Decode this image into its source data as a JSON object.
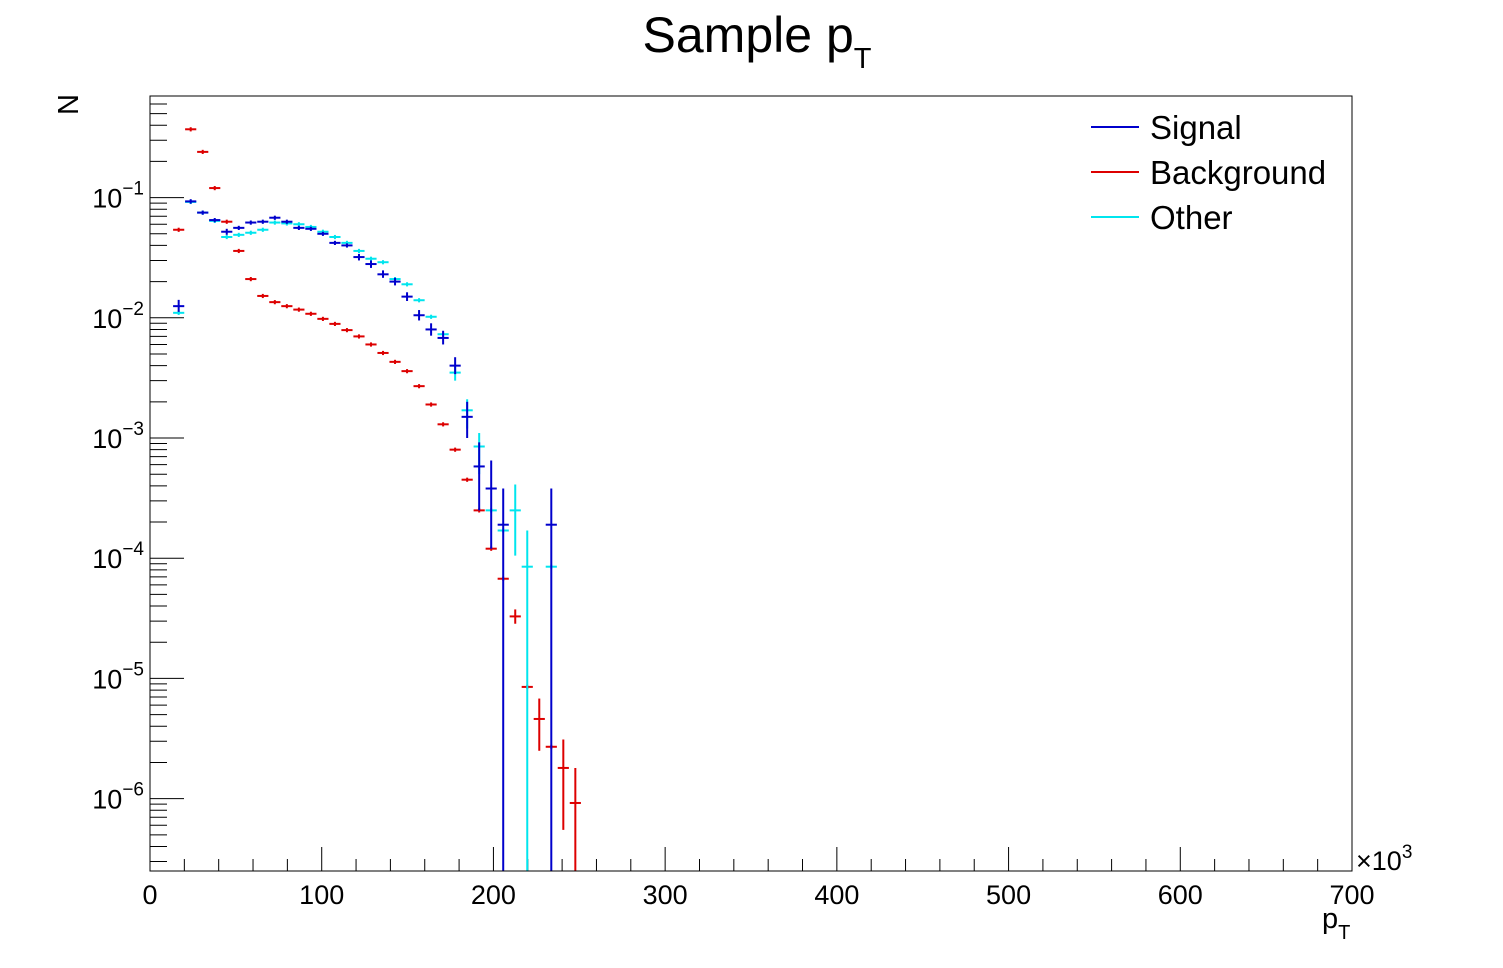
{
  "chart_data": {
    "type": "scatter",
    "title": "Sample p",
    "title_subscript": "T",
    "xlabel": "p",
    "xlabel_subscript": "T",
    "ylabel": "N",
    "x_multiplier": "×10",
    "x_multiplier_exp": "3",
    "xlim": [
      0,
      700
    ],
    "ylim": [
      2.5e-07,
      0.7
    ],
    "y_scale": "log",
    "bin_width": 6.5,
    "grid": false,
    "legend_position": "top-right",
    "x_ticks": [
      {
        "value": 0,
        "label": "0"
      },
      {
        "value": 100,
        "label": "100"
      },
      {
        "value": 200,
        "label": "200"
      },
      {
        "value": 300,
        "label": "300"
      },
      {
        "value": 400,
        "label": "400"
      },
      {
        "value": 500,
        "label": "500"
      },
      {
        "value": 600,
        "label": "600"
      },
      {
        "value": 700,
        "label": "700"
      }
    ],
    "y_ticks": [
      {
        "value": 0.1,
        "base": "10",
        "exp": "−1"
      },
      {
        "value": 0.01,
        "base": "10",
        "exp": "−2"
      },
      {
        "value": 0.001,
        "base": "10",
        "exp": "−3"
      },
      {
        "value": 0.0001,
        "base": "10",
        "exp": "−4"
      },
      {
        "value": 1e-05,
        "base": "10",
        "exp": "−5"
      },
      {
        "value": 1e-06,
        "base": "10",
        "exp": "−6"
      }
    ],
    "series": [
      {
        "name": "Signal",
        "color": "#0000cc",
        "points": [
          {
            "x": 16.7,
            "y": 0.0125,
            "lo": 0.0112,
            "hi": 0.0141
          },
          {
            "x": 23.7,
            "y": 0.093,
            "lo": 0.089,
            "hi": 0.097
          },
          {
            "x": 30.7,
            "y": 0.075
          },
          {
            "x": 37.7,
            "y": 0.065
          },
          {
            "x": 44.7,
            "y": 0.052,
            "lo": 0.049,
            "hi": 0.055
          },
          {
            "x": 51.7,
            "y": 0.056
          },
          {
            "x": 58.7,
            "y": 0.062
          },
          {
            "x": 65.7,
            "y": 0.063
          },
          {
            "x": 72.7,
            "y": 0.068
          },
          {
            "x": 79.7,
            "y": 0.063
          },
          {
            "x": 86.7,
            "y": 0.056
          },
          {
            "x": 93.7,
            "y": 0.055
          },
          {
            "x": 100.7,
            "y": 0.05
          },
          {
            "x": 107.7,
            "y": 0.042
          },
          {
            "x": 114.7,
            "y": 0.04
          },
          {
            "x": 121.7,
            "y": 0.032,
            "lo": 0.03,
            "hi": 0.034
          },
          {
            "x": 128.7,
            "y": 0.028,
            "lo": 0.026,
            "hi": 0.03
          },
          {
            "x": 135.7,
            "y": 0.023,
            "lo": 0.0215,
            "hi": 0.0248
          },
          {
            "x": 142.7,
            "y": 0.02,
            "lo": 0.0186,
            "hi": 0.0215
          },
          {
            "x": 149.7,
            "y": 0.015,
            "lo": 0.0138,
            "hi": 0.0163
          },
          {
            "x": 156.7,
            "y": 0.0105,
            "lo": 0.0095,
            "hi": 0.0116
          },
          {
            "x": 163.7,
            "y": 0.008,
            "lo": 0.0071,
            "hi": 0.009
          },
          {
            "x": 170.7,
            "y": 0.0068,
            "lo": 0.006,
            "hi": 0.0078
          },
          {
            "x": 177.7,
            "y": 0.004,
            "lo": 0.0034,
            "hi": 0.0047
          },
          {
            "x": 184.7,
            "y": 0.0015,
            "lo": 0.001,
            "hi": 0.002
          },
          {
            "x": 191.7,
            "y": 0.00058,
            "lo": 0.00025,
            "hi": 0.00092
          },
          {
            "x": 198.7,
            "y": 0.00038,
            "lo": 0.00012,
            "hi": 0.00065
          },
          {
            "x": 205.7,
            "y": 0.00019,
            "lo": 2.5e-07,
            "hi": 0.00038
          },
          {
            "x": 233.7,
            "y": 0.00019,
            "lo": 2.5e-07,
            "hi": 0.00038
          }
        ]
      },
      {
        "name": "Background",
        "color": "#dd0000",
        "points": [
          {
            "x": 16.7,
            "y": 0.054
          },
          {
            "x": 23.7,
            "y": 0.37
          },
          {
            "x": 30.7,
            "y": 0.24
          },
          {
            "x": 37.7,
            "y": 0.12
          },
          {
            "x": 44.7,
            "y": 0.063
          },
          {
            "x": 51.7,
            "y": 0.036
          },
          {
            "x": 58.7,
            "y": 0.021
          },
          {
            "x": 65.7,
            "y": 0.0152
          },
          {
            "x": 72.7,
            "y": 0.0135
          },
          {
            "x": 79.7,
            "y": 0.0125
          },
          {
            "x": 86.7,
            "y": 0.0117
          },
          {
            "x": 93.7,
            "y": 0.0108
          },
          {
            "x": 100.7,
            "y": 0.0098
          },
          {
            "x": 107.7,
            "y": 0.0089
          },
          {
            "x": 114.7,
            "y": 0.0079
          },
          {
            "x": 121.7,
            "y": 0.007
          },
          {
            "x": 128.7,
            "y": 0.006
          },
          {
            "x": 135.7,
            "y": 0.0051
          },
          {
            "x": 142.7,
            "y": 0.0043
          },
          {
            "x": 149.7,
            "y": 0.0036
          },
          {
            "x": 156.7,
            "y": 0.0027
          },
          {
            "x": 163.7,
            "y": 0.0019
          },
          {
            "x": 170.7,
            "y": 0.0013
          },
          {
            "x": 177.7,
            "y": 0.0008
          },
          {
            "x": 184.7,
            "y": 0.00045
          },
          {
            "x": 191.7,
            "y": 0.00025
          },
          {
            "x": 198.7,
            "y": 0.00012
          },
          {
            "x": 205.7,
            "y": 6.75e-05
          },
          {
            "x": 212.7,
            "y": 3.28e-05,
            "lo": 2.85e-05,
            "hi": 3.75e-05
          },
          {
            "x": 219.7,
            "y": 8.5e-06
          },
          {
            "x": 226.7,
            "y": 4.6e-06,
            "lo": 2.5e-06,
            "hi": 6.8e-06
          },
          {
            "x": 233.7,
            "y": 2.7e-06
          },
          {
            "x": 240.7,
            "y": 1.8e-06,
            "lo": 5.5e-07,
            "hi": 3.1e-06
          },
          {
            "x": 247.7,
            "y": 9.2e-07,
            "lo": 2.5e-07,
            "hi": 1.8e-06
          }
        ]
      },
      {
        "name": "Other",
        "color": "#00e5ee",
        "points": [
          {
            "x": 16.7,
            "y": 0.011
          },
          {
            "x": 23.7,
            "y": 0.092
          },
          {
            "x": 30.7,
            "y": 0.075
          },
          {
            "x": 37.7,
            "y": 0.064
          },
          {
            "x": 44.7,
            "y": 0.047
          },
          {
            "x": 51.7,
            "y": 0.049
          },
          {
            "x": 58.7,
            "y": 0.051
          },
          {
            "x": 65.7,
            "y": 0.054
          },
          {
            "x": 72.7,
            "y": 0.062
          },
          {
            "x": 79.7,
            "y": 0.061
          },
          {
            "x": 86.7,
            "y": 0.06
          },
          {
            "x": 93.7,
            "y": 0.057
          },
          {
            "x": 100.7,
            "y": 0.052
          },
          {
            "x": 107.7,
            "y": 0.047
          },
          {
            "x": 114.7,
            "y": 0.042
          },
          {
            "x": 121.7,
            "y": 0.036
          },
          {
            "x": 128.7,
            "y": 0.031
          },
          {
            "x": 135.7,
            "y": 0.029
          },
          {
            "x": 142.7,
            "y": 0.021
          },
          {
            "x": 149.7,
            "y": 0.019
          },
          {
            "x": 156.7,
            "y": 0.014
          },
          {
            "x": 163.7,
            "y": 0.0102
          },
          {
            "x": 170.7,
            "y": 0.0073
          },
          {
            "x": 177.7,
            "y": 0.0035,
            "lo": 0.003,
            "hi": 0.004
          },
          {
            "x": 184.7,
            "y": 0.0017,
            "lo": 0.0012,
            "hi": 0.0021
          },
          {
            "x": 191.7,
            "y": 0.00085,
            "lo": 0.0005,
            "hi": 0.0011
          },
          {
            "x": 198.7,
            "y": 0.00025
          },
          {
            "x": 205.7,
            "y": 0.00017
          },
          {
            "x": 212.7,
            "y": 0.00025,
            "lo": 0.000105,
            "hi": 0.00041
          },
          {
            "x": 219.7,
            "y": 8.5e-05,
            "lo": 2.5e-07,
            "hi": 0.00017
          },
          {
            "x": 233.7,
            "y": 8.5e-05
          }
        ]
      }
    ]
  }
}
